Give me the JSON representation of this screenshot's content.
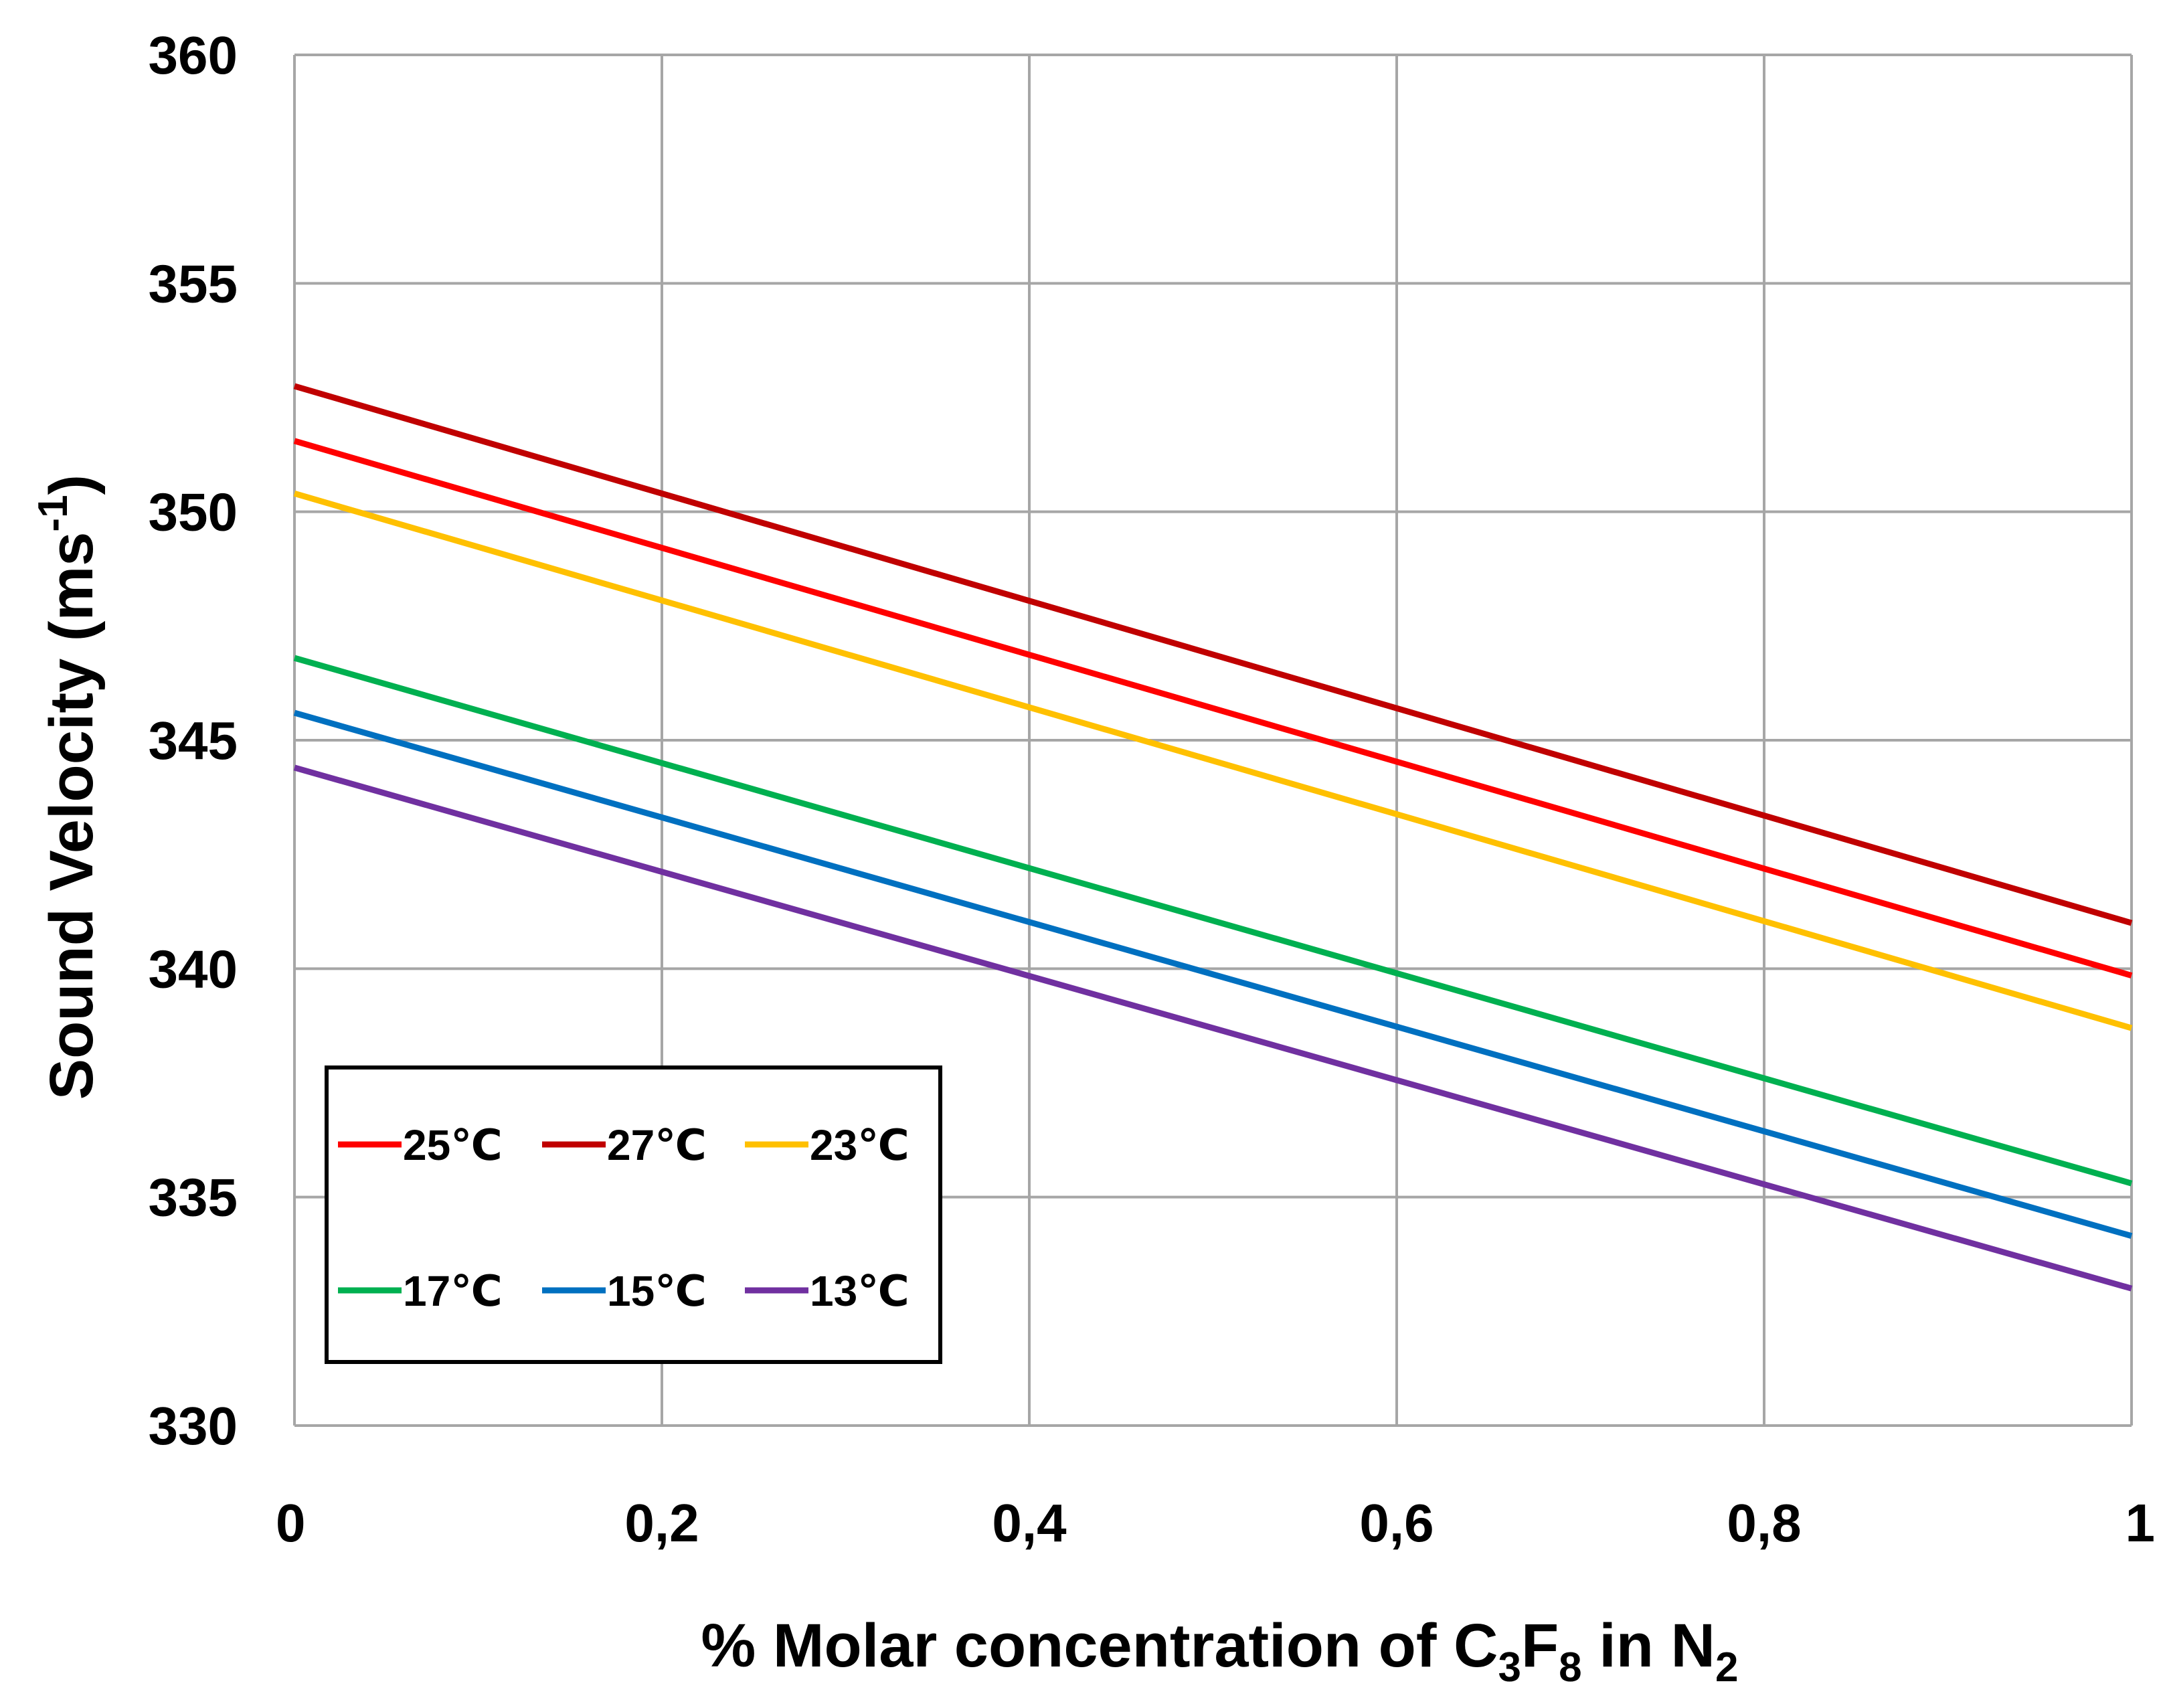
{
  "chart_data": {
    "type": "line",
    "title": "",
    "xlabel": {
      "parts": [
        {
          "text": "% Molar concentration of C",
          "sub": false
        },
        {
          "text": "3",
          "sub": true
        },
        {
          "text": "F",
          "sub": false
        },
        {
          "text": "8",
          "sub": true
        },
        {
          "text": " in N",
          "sub": false
        },
        {
          "text": "2",
          "sub": true
        }
      ]
    },
    "ylabel": {
      "parts": [
        {
          "text": "Sound Velocity (ms",
          "sup": false
        },
        {
          "text": "-1",
          "sup": true
        },
        {
          "text": ")",
          "sup": false
        }
      ]
    },
    "xlim": [
      0,
      1
    ],
    "ylim": [
      330,
      360
    ],
    "x_ticks": [
      0,
      0.2,
      0.4,
      0.6,
      0.8,
      1
    ],
    "x_tick_labels": [
      "0",
      "0,2",
      "0,4",
      "0,6",
      "0,8",
      "1"
    ],
    "y_ticks": [
      330,
      335,
      340,
      345,
      350,
      355,
      360
    ],
    "y_tick_labels": [
      "330",
      "335",
      "340",
      "345",
      "350",
      "355",
      "360"
    ],
    "grid": true,
    "legend_position": "bottom-left",
    "series": [
      {
        "name": "25℃",
        "color": "#ff0000",
        "x": [
          0,
          1
        ],
        "y": [
          351.55,
          339.85
        ]
      },
      {
        "name": "27℃",
        "color": "#c00000",
        "x": [
          0,
          1
        ],
        "y": [
          352.75,
          341.0
        ]
      },
      {
        "name": "23℃",
        "color": "#ffc000",
        "x": [
          0,
          1
        ],
        "y": [
          350.4,
          338.7
        ]
      },
      {
        "name": "17℃",
        "color": "#00b050",
        "x": [
          0,
          1
        ],
        "y": [
          346.8,
          335.3
        ]
      },
      {
        "name": "15℃",
        "color": "#0070c0",
        "x": [
          0,
          1
        ],
        "y": [
          345.6,
          334.15
        ]
      },
      {
        "name": "13℃",
        "color": "#7030a0",
        "x": [
          0,
          1
        ],
        "y": [
          344.4,
          333.0
        ]
      }
    ]
  }
}
